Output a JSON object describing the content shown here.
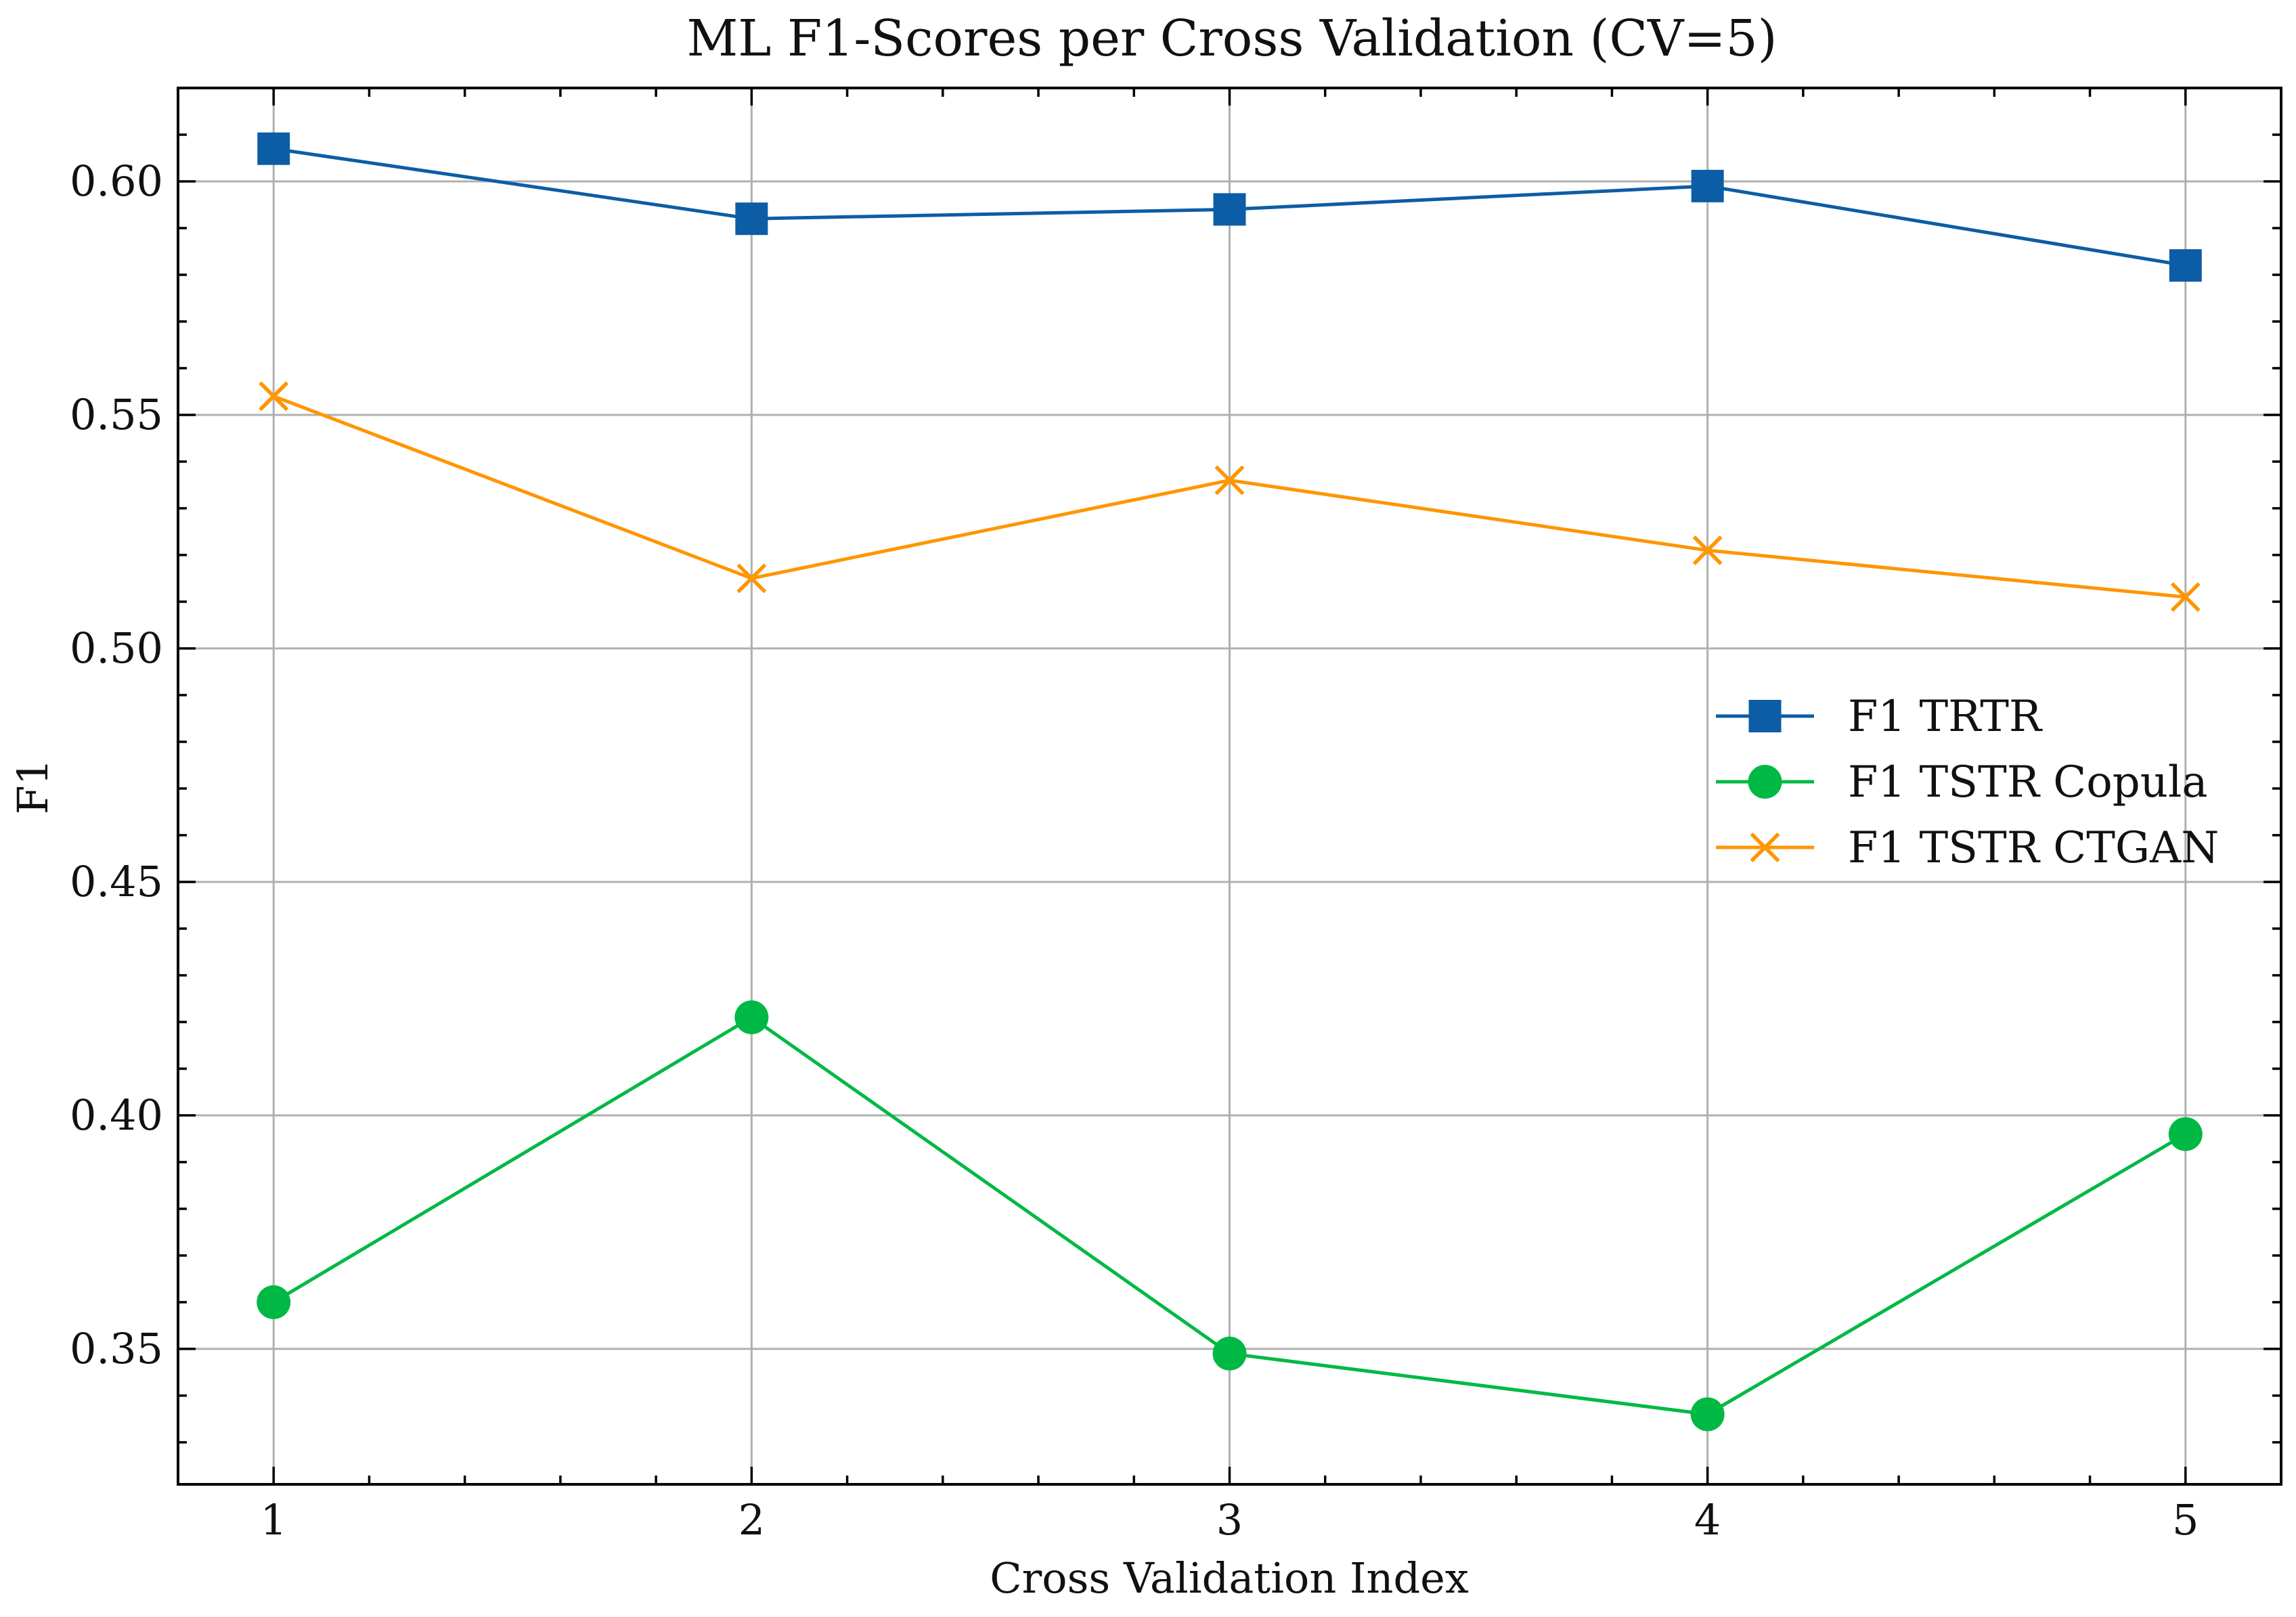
{
  "chart_data": {
    "type": "line",
    "title": "ML F1-Scores per Cross Validation (CV=5)",
    "xlabel": "Cross Validation Index",
    "ylabel": "F1",
    "x": [
      1,
      2,
      3,
      4,
      5
    ],
    "xlim": [
      0.8,
      5.2
    ],
    "ylim": [
      0.321,
      0.62
    ],
    "xticks": [
      1,
      2,
      3,
      4,
      5
    ],
    "yticks": [
      0.35,
      0.4,
      0.45,
      0.5,
      0.55,
      0.6
    ],
    "ytick_labels": [
      "0.35",
      "0.40",
      "0.45",
      "0.50",
      "0.55",
      "0.60"
    ],
    "grid": true,
    "legend_position": "center-right",
    "series": [
      {
        "name": "F1 TRTR",
        "values": [
          0.607,
          0.592,
          0.594,
          0.599,
          0.582
        ],
        "color": "#0C5DA5",
        "marker": "square"
      },
      {
        "name": "F1 TSTR Copula",
        "values": [
          0.36,
          0.421,
          0.349,
          0.336,
          0.396
        ],
        "color": "#00B945",
        "marker": "circle"
      },
      {
        "name": "F1 TSTR CTGAN",
        "values": [
          0.554,
          0.515,
          0.536,
          0.521,
          0.511
        ],
        "color": "#FF9500",
        "marker": "x"
      }
    ]
  }
}
